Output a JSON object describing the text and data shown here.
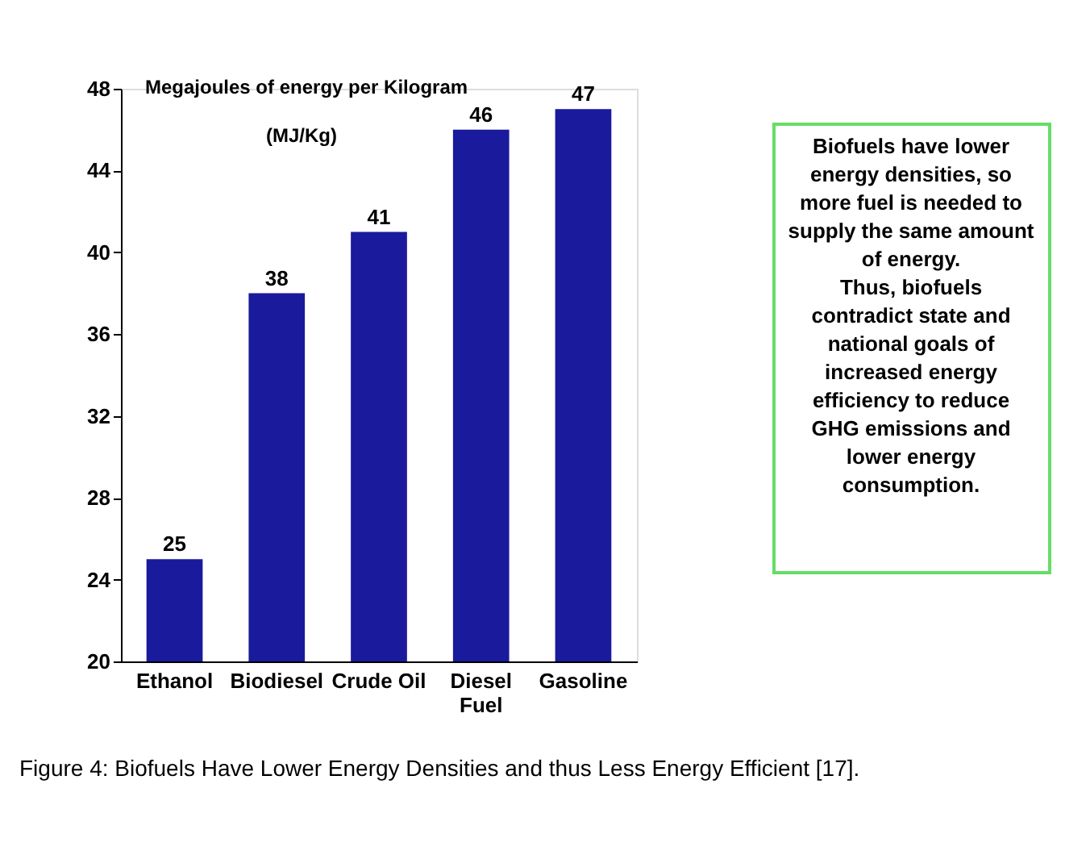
{
  "chart_data": {
    "type": "bar",
    "categories": [
      "Ethanol",
      "Biodiesel",
      "Crude Oil",
      "Diesel Fuel",
      "Gasoline"
    ],
    "values": [
      25,
      38,
      41,
      46,
      47
    ],
    "color": "#1a1a9c",
    "ylim": [
      20,
      48
    ],
    "yticks": [
      20,
      24,
      28,
      32,
      36,
      40,
      44,
      48
    ],
    "data_labels": true,
    "grid": false,
    "annotations": [
      "Megajoules of energy per Kilogram",
      "(MJ/Kg)",
      "Biofuels have lower energy densities, so more fuel is needed to supply the same amount of energy.",
      "Thus, biofuels contradict state and national goals of increased energy efficiency to reduce GHG emissions and lower energy consumption.",
      "Figure 4: Biofuels Have Lower Energy Densities and thus Less Energy Efficient [17]."
    ]
  }
}
